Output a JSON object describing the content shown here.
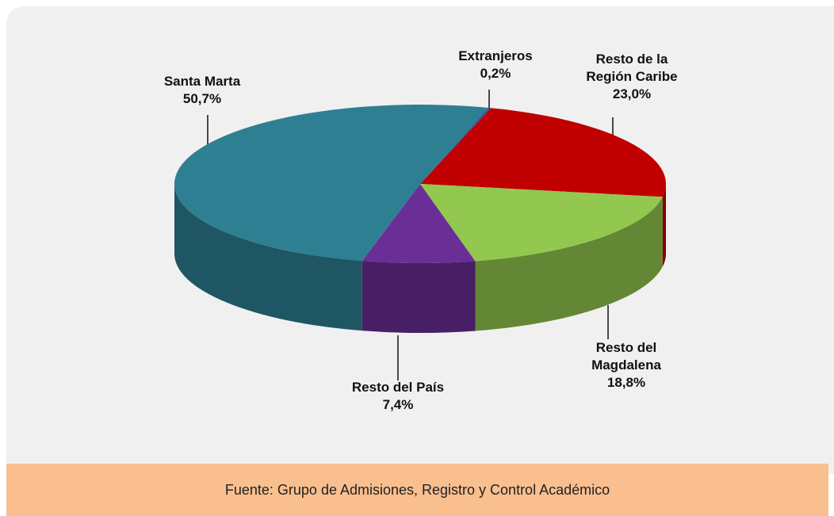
{
  "chart_data": {
    "type": "pie",
    "categories": [
      "Extranjeros",
      "Resto de la Región Caribe",
      "Resto del Magdalena",
      "Resto del País",
      "Santa Marta"
    ],
    "values": [
      0.2,
      23.0,
      18.8,
      7.4,
      50.7
    ],
    "value_labels": [
      "0,2%",
      "23,0%",
      "18,8%",
      "7,4%",
      "50,7%"
    ],
    "colors": [
      "#2e5fa0",
      "#c00000",
      "#92c84f",
      "#6a2f96",
      "#2f7f93"
    ],
    "source": "Fuente: Grupo de Admisiones, Registro y Control Académico"
  }
}
